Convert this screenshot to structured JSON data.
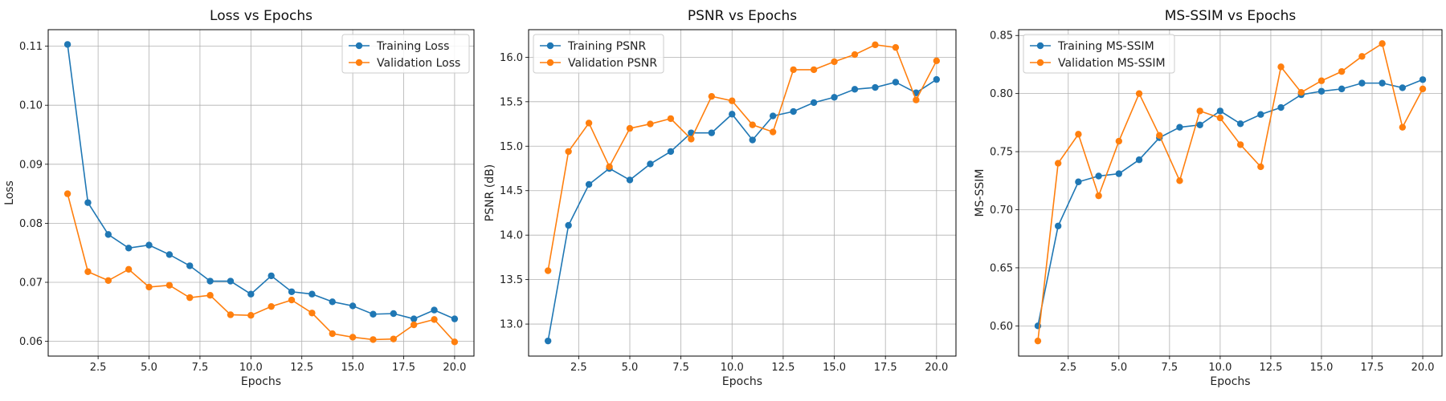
{
  "colors": {
    "training": "#1f77b4",
    "validation": "#ff7f0e",
    "grid": "#b0b0b0"
  },
  "chart_data": [
    {
      "type": "line",
      "title": "Loss vs Epochs",
      "xlabel": "Epochs",
      "ylabel": "Loss",
      "xlim": [
        0.05,
        20.95
      ],
      "ylim": [
        0.0575,
        0.1128
      ],
      "xticks": [
        "2.5",
        "5.0",
        "7.5",
        "10.0",
        "12.5",
        "15.0",
        "17.5",
        "20.0"
      ],
      "yticks": [
        "0.06",
        "0.07",
        "0.08",
        "0.09",
        "0.10",
        "0.11"
      ],
      "grid": true,
      "legend_position": "top-right",
      "x": [
        1,
        2,
        3,
        4,
        5,
        6,
        7,
        8,
        9,
        10,
        11,
        12,
        13,
        14,
        15,
        16,
        17,
        18,
        19,
        20
      ],
      "series": [
        {
          "name": "Training Loss",
          "color": "#1f77b4",
          "values": [
            0.1103,
            0.0835,
            0.0781,
            0.0758,
            0.0763,
            0.0747,
            0.0728,
            0.0702,
            0.0702,
            0.068,
            0.0711,
            0.0684,
            0.068,
            0.0667,
            0.066,
            0.0646,
            0.0647,
            0.0638,
            0.0653,
            0.0638
          ]
        },
        {
          "name": "Validation Loss",
          "color": "#ff7f0e",
          "values": [
            0.085,
            0.0718,
            0.0703,
            0.0722,
            0.0692,
            0.0695,
            0.0674,
            0.0678,
            0.0645,
            0.0644,
            0.0659,
            0.067,
            0.0648,
            0.0613,
            0.0607,
            0.0603,
            0.0604,
            0.0628,
            0.0637,
            0.0599
          ]
        }
      ]
    },
    {
      "type": "line",
      "title": "PSNR vs Epochs",
      "xlabel": "Epochs",
      "ylabel": "PSNR (dB)",
      "xlim": [
        0.05,
        20.95
      ],
      "ylim": [
        12.64,
        16.31
      ],
      "xticks": [
        "2.5",
        "5.0",
        "7.5",
        "10.0",
        "12.5",
        "15.0",
        "17.5",
        "20.0"
      ],
      "yticks": [
        "13.0",
        "13.5",
        "14.0",
        "14.5",
        "15.0",
        "15.5",
        "16.0"
      ],
      "grid": true,
      "legend_position": "top-left",
      "x": [
        1,
        2,
        3,
        4,
        5,
        6,
        7,
        8,
        9,
        10,
        11,
        12,
        13,
        14,
        15,
        16,
        17,
        18,
        19,
        20
      ],
      "series": [
        {
          "name": "Training PSNR",
          "color": "#1f77b4",
          "values": [
            12.81,
            14.11,
            14.57,
            14.75,
            14.62,
            14.8,
            14.94,
            15.15,
            15.15,
            15.36,
            15.07,
            15.34,
            15.39,
            15.49,
            15.55,
            15.64,
            15.66,
            15.72,
            15.6,
            15.75
          ]
        },
        {
          "name": "Validation PSNR",
          "color": "#ff7f0e",
          "values": [
            13.6,
            14.94,
            15.26,
            14.77,
            15.2,
            15.25,
            15.31,
            15.08,
            15.56,
            15.51,
            15.24,
            15.16,
            15.86,
            15.86,
            15.95,
            16.03,
            16.14,
            16.11,
            15.52,
            15.96
          ]
        }
      ]
    },
    {
      "type": "line",
      "title": "MS-SSIM vs Epochs",
      "xlabel": "Epochs",
      "ylabel": "MS-SSIM",
      "xlim": [
        0.05,
        20.95
      ],
      "ylim": [
        0.574,
        0.855
      ],
      "xticks": [
        "2.5",
        "5.0",
        "7.5",
        "10.0",
        "12.5",
        "15.0",
        "17.5",
        "20.0"
      ],
      "yticks": [
        "0.60",
        "0.65",
        "0.70",
        "0.75",
        "0.80",
        "0.85"
      ],
      "grid": true,
      "legend_position": "top-left",
      "x": [
        1,
        2,
        3,
        4,
        5,
        6,
        7,
        8,
        9,
        10,
        11,
        12,
        13,
        14,
        15,
        16,
        17,
        18,
        19,
        20
      ],
      "series": [
        {
          "name": "Training MS-SSIM",
          "color": "#1f77b4",
          "values": [
            0.6,
            0.686,
            0.724,
            0.729,
            0.731,
            0.743,
            0.762,
            0.771,
            0.773,
            0.785,
            0.774,
            0.782,
            0.788,
            0.799,
            0.802,
            0.804,
            0.809,
            0.809,
            0.805,
            0.812
          ]
        },
        {
          "name": "Validation MS-SSIM",
          "color": "#ff7f0e",
          "values": [
            0.587,
            0.74,
            0.765,
            0.712,
            0.759,
            0.8,
            0.764,
            0.725,
            0.785,
            0.779,
            0.756,
            0.737,
            0.823,
            0.801,
            0.811,
            0.819,
            0.832,
            0.843,
            0.771,
            0.804
          ]
        }
      ]
    }
  ]
}
